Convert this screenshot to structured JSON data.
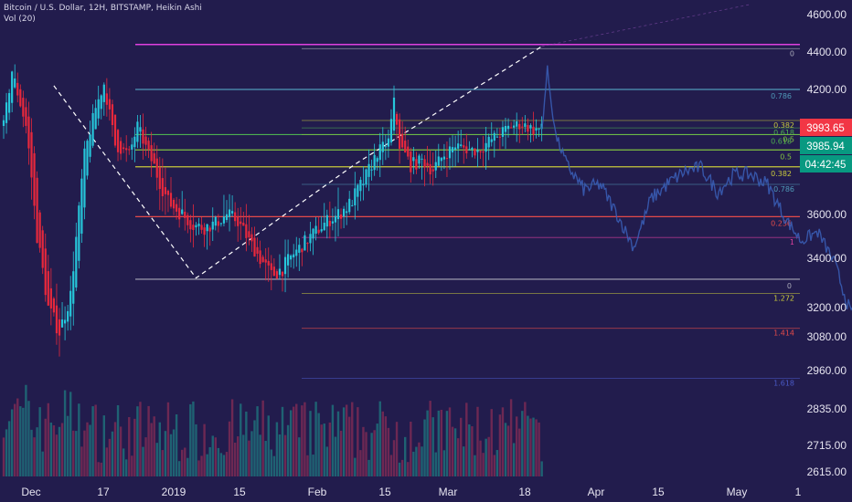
{
  "header": {
    "symbol_line": "Bitcoin / U.S. Dollar, 12H, BITSTAMP, Heikin Ashi",
    "indicator_line": "Vol (20)"
  },
  "chart_data": {
    "type": "candlestick",
    "title": "Bitcoin / U.S. Dollar, 12H, BITSTAMP, Heikin Ashi",
    "price_axis": {
      "ticks": [
        4600,
        4400,
        4200,
        4000,
        3800,
        3600,
        3400,
        3200,
        3080,
        2960,
        2835,
        2715,
        2615
      ],
      "labels": [
        "4600.00",
        "4400.00",
        "4200.00",
        "4000.00",
        "3800.00",
        "3600.00",
        "3400.00",
        "3200.00",
        "3080.00",
        "2960.00",
        "2835.00",
        "2715.00",
        "2615.00"
      ],
      "scale": "log"
    },
    "time_axis": {
      "labels": [
        "Dec",
        "17",
        "2019",
        "15",
        "Feb",
        "15",
        "Mar",
        "18",
        "Apr",
        "15",
        "May",
        "1"
      ]
    },
    "price_badges": [
      {
        "value": "3993.65",
        "color": "#f23645"
      },
      {
        "value": "3985.94",
        "color": "#089981"
      },
      {
        "value": "04:42:45",
        "color": "#089981"
      }
    ],
    "fib_set_1": {
      "levels": [
        {
          "ratio": "0.786",
          "price": 4200,
          "color": "#4f99b8"
        },
        {
          "ratio": "0.618",
          "price": 3955,
          "color": "#4caf50"
        },
        {
          "ratio": "0.5",
          "price": 3875,
          "color": "#80c040"
        },
        {
          "ratio": "0.382",
          "price": 3790,
          "color": "#c8c83c"
        },
        {
          "ratio": "0.236",
          "price": 3590,
          "color": "#e24a4a"
        },
        {
          "ratio": "0",
          "price": 3315,
          "color": "#a9a9b8"
        }
      ]
    },
    "fib_set_2": {
      "levels": [
        {
          "ratio": "0",
          "price": 4418,
          "color": "#a9a9b8"
        },
        {
          "ratio": "0.382",
          "price": 4030,
          "color": "#c8c83c"
        },
        {
          "ratio": "0.618",
          "price": 3990,
          "color": "#4caf50"
        },
        {
          "ratio": "0.5",
          "price": 3955,
          "color": "#80c040"
        },
        {
          "ratio": "0.786",
          "price": 3720,
          "color": "#4f99b8"
        },
        {
          "ratio": "1",
          "price": 3495,
          "color": "#e040a0"
        },
        {
          "ratio": "1.272",
          "price": 3258,
          "color": "#c8c83c"
        },
        {
          "ratio": "1.414",
          "price": 3115,
          "color": "#e24a4a"
        },
        {
          "ratio": "1.618",
          "price": 2935,
          "color": "#4a5ac8"
        }
      ]
    },
    "horizontal_line": {
      "price": 4440,
      "color": "#e040e0"
    },
    "series_anchors": [
      {
        "t": 0,
        "p": 4000
      },
      {
        "t": 3,
        "p": 4300
      },
      {
        "t": 8,
        "p": 4000
      },
      {
        "t": 12,
        "p": 3500
      },
      {
        "t": 16,
        "p": 3200
      },
      {
        "t": 20,
        "p": 3100
      },
      {
        "t": 24,
        "p": 3250
      },
      {
        "t": 29,
        "p": 3850
      },
      {
        "t": 33,
        "p": 4100
      },
      {
        "t": 36,
        "p": 4230
      },
      {
        "t": 40,
        "p": 3900
      },
      {
        "t": 45,
        "p": 3850
      },
      {
        "t": 48,
        "p": 4000
      },
      {
        "t": 52,
        "p": 3850
      },
      {
        "t": 55,
        "p": 3760
      },
      {
        "t": 59,
        "p": 3650
      },
      {
        "t": 64,
        "p": 3600
      },
      {
        "t": 68,
        "p": 3550
      },
      {
        "t": 72,
        "p": 3540
      },
      {
        "t": 76,
        "p": 3560
      },
      {
        "t": 80,
        "p": 3600
      },
      {
        "t": 84,
        "p": 3570
      },
      {
        "t": 88,
        "p": 3480
      },
      {
        "t": 92,
        "p": 3400
      },
      {
        "t": 96,
        "p": 3330
      },
      {
        "t": 100,
        "p": 3360
      },
      {
        "t": 104,
        "p": 3420
      },
      {
        "t": 110,
        "p": 3500
      },
      {
        "t": 116,
        "p": 3570
      },
      {
        "t": 120,
        "p": 3600
      },
      {
        "t": 124,
        "p": 3640
      },
      {
        "t": 130,
        "p": 3750
      },
      {
        "t": 134,
        "p": 3860
      },
      {
        "t": 138,
        "p": 3920
      },
      {
        "t": 140,
        "p": 4130
      },
      {
        "t": 142,
        "p": 3900
      },
      {
        "t": 146,
        "p": 3800
      },
      {
        "t": 150,
        "p": 3820
      },
      {
        "t": 154,
        "p": 3780
      },
      {
        "t": 158,
        "p": 3850
      },
      {
        "t": 162,
        "p": 3900
      },
      {
        "t": 166,
        "p": 3880
      },
      {
        "t": 170,
        "p": 3870
      },
      {
        "t": 174,
        "p": 3920
      },
      {
        "t": 178,
        "p": 3960
      },
      {
        "t": 182,
        "p": 4000
      },
      {
        "t": 186,
        "p": 4010
      },
      {
        "t": 190,
        "p": 3980
      },
      {
        "t": 193,
        "p": 3985
      }
    ],
    "projection_anchors": [
      {
        "t": 193,
        "p": 3985
      },
      {
        "t": 195,
        "p": 4300
      },
      {
        "t": 198,
        "p": 3950
      },
      {
        "t": 202,
        "p": 3800
      },
      {
        "t": 208,
        "p": 3700
      },
      {
        "t": 214,
        "p": 3720
      },
      {
        "t": 220,
        "p": 3600
      },
      {
        "t": 226,
        "p": 3450
      },
      {
        "t": 232,
        "p": 3660
      },
      {
        "t": 238,
        "p": 3720
      },
      {
        "t": 244,
        "p": 3770
      },
      {
        "t": 250,
        "p": 3790
      },
      {
        "t": 256,
        "p": 3690
      },
      {
        "t": 262,
        "p": 3760
      },
      {
        "t": 268,
        "p": 3760
      },
      {
        "t": 274,
        "p": 3720
      },
      {
        "t": 280,
        "p": 3590
      },
      {
        "t": 286,
        "p": 3480
      },
      {
        "t": 292,
        "p": 3520
      },
      {
        "t": 298,
        "p": 3380
      },
      {
        "t": 304,
        "p": 3170
      },
      {
        "t": 310,
        "p": 3230
      },
      {
        "t": 316,
        "p": 3340
      },
      {
        "t": 322,
        "p": 3250
      },
      {
        "t": 328,
        "p": 3230
      },
      {
        "t": 334,
        "p": 3210
      },
      {
        "t": 338,
        "p": 3180
      },
      {
        "t": 340,
        "p": 2880
      }
    ],
    "zigzag": [
      {
        "t": 18,
        "p": 4220
      },
      {
        "t": 69,
        "p": 3320
      },
      {
        "t": 126,
        "p": 3800
      },
      {
        "t": 193,
        "p": 4430
      }
    ]
  }
}
